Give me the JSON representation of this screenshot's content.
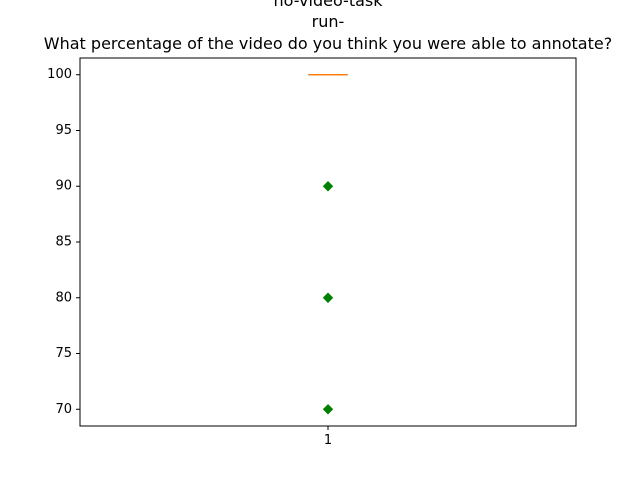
{
  "chart_data": {
    "type": "box",
    "title_lines": [
      "no-video-task",
      "run-",
      "What percentage of the video do you think you were able to annotate?"
    ],
    "xlabel": "",
    "ylabel": "",
    "categories": [
      "1"
    ],
    "ylim": [
      68.5,
      101.5
    ],
    "yticks": [
      70,
      75,
      80,
      85,
      90,
      95,
      100
    ],
    "boxes": [
      {
        "category": "1",
        "q1": 100,
        "median": 100,
        "q3": 100,
        "whisker_low": 100,
        "whisker_high": 100,
        "outliers": [
          90,
          80,
          70
        ]
      }
    ],
    "colors": {
      "box": "#000000",
      "median": "#ff7f0e",
      "outlier": "#008000"
    },
    "grid": false,
    "legend": "none"
  }
}
